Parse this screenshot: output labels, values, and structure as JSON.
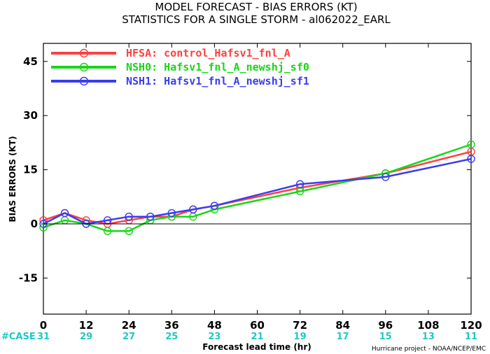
{
  "chart_data": {
    "type": "line",
    "title": "MODEL FORECAST - BIAS ERRORS (KT)",
    "subtitle": "STATISTICS FOR A SINGLE STORM - al062022_EARL",
    "xlabel": "Forecast lead time (hr)",
    "ylabel": "BIAS ERRORS (KT)",
    "xlim": [
      0,
      120
    ],
    "ylim": [
      -25,
      50
    ],
    "x_ticks": [
      "0",
      "12",
      "24",
      "36",
      "48",
      "60",
      "72",
      "84",
      "96",
      "108",
      "120"
    ],
    "y_ticks": [
      "45",
      "30",
      "15",
      "0",
      "-15"
    ],
    "x_tick_values": [
      0,
      12,
      24,
      36,
      48,
      60,
      72,
      84,
      96,
      108,
      120
    ],
    "y_tick_values": [
      45,
      30,
      15,
      0,
      -15
    ],
    "zero_line": true,
    "legend_placement": "top-left",
    "series": [
      {
        "name": "HFSA: control_Hafsv1_fnl_A",
        "color": "#ff4040",
        "x": [
          0,
          6,
          12,
          18,
          24,
          30,
          36,
          42,
          48,
          72,
          96,
          120
        ],
        "y": [
          1,
          3,
          1,
          0,
          1,
          2,
          2,
          4,
          5,
          10,
          14,
          20
        ]
      },
      {
        "name": "NSH0: Hafsv1_fnl_A_newshj_sf0",
        "color": "#19d619",
        "x": [
          0,
          6,
          12,
          18,
          24,
          30,
          36,
          42,
          48,
          72,
          96,
          120
        ],
        "y": [
          -1,
          1,
          0,
          -2,
          -2,
          1,
          2,
          2,
          4,
          9,
          14,
          22
        ]
      },
      {
        "name": "NSH1: Hafsv1_fnl_A_newshj_sf1",
        "color": "#3c3cf0",
        "x": [
          0,
          6,
          12,
          18,
          24,
          30,
          36,
          42,
          48,
          72,
          96,
          120
        ],
        "y": [
          0,
          3,
          0,
          1,
          2,
          2,
          3,
          4,
          5,
          11,
          13,
          18
        ]
      }
    ],
    "case_label": "#CASE",
    "case_color": "#1ec8c8",
    "case_counts": [
      "31",
      "29",
      "27",
      "25",
      "23",
      "21",
      "19",
      "17",
      "15",
      "13",
      "11"
    ],
    "credit": "Hurricane project - NOAA/NCEP/EMC"
  }
}
